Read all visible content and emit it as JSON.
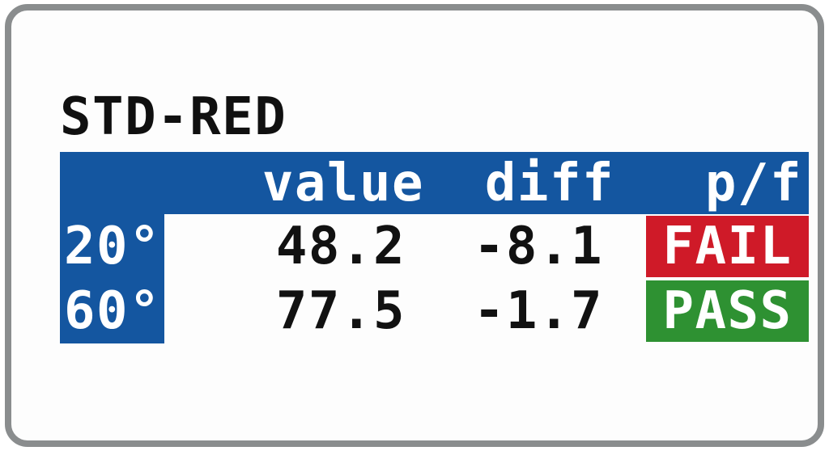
{
  "screen": {
    "title": "STD-RED",
    "table": {
      "corner_label": "",
      "columns": [
        "value",
        "diff",
        "p/f"
      ],
      "rows": [
        {
          "angle": "20°",
          "value": "48.2",
          "diff": "-8.1",
          "result": "FAIL",
          "status": "fail"
        },
        {
          "angle": "60°",
          "value": "77.5",
          "diff": "-1.7",
          "result": "PASS",
          "status": "pass"
        }
      ]
    },
    "colors": {
      "accent_blue": "#1456A0",
      "fail_red": "#CF1A28",
      "pass_green": "#2E9132",
      "frame_gray": "#8A8D8E",
      "text_black": "#111111",
      "text_white": "#FFFFFF"
    }
  }
}
